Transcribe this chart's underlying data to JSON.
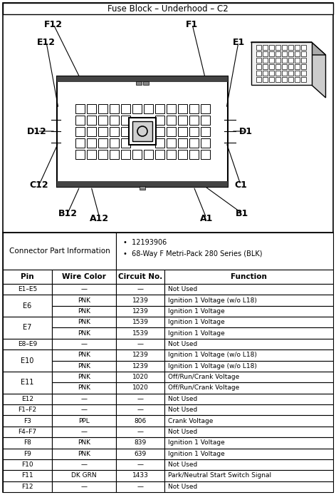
{
  "title": "Fuse Block – Underhood – C2",
  "connector_info_label": "Connector Part Information",
  "connector_info_bullets": [
    "12193906",
    "68-Way F Metri-Pack 280 Series (BLK)"
  ],
  "table_headers": [
    "Pin",
    "Wire Color",
    "Circuit No.",
    "Function"
  ],
  "table_rows": [
    [
      "E1–E5",
      "—",
      "—",
      "Not Used"
    ],
    [
      "E6",
      "PNK",
      "1239",
      "Ignition 1 Voltage (w/o L18)"
    ],
    [
      "E6",
      "PNK",
      "1239",
      "Ignition 1 Voltage"
    ],
    [
      "E7",
      "PNK",
      "1539",
      "Ignition 1 Voltage"
    ],
    [
      "E7",
      "PNK",
      "1539",
      "Ignition 1 Voltage"
    ],
    [
      "E8–E9",
      "—",
      "—",
      "Not Used"
    ],
    [
      "E10",
      "PNK",
      "1239",
      "Ignition 1 Voltage (w/o L18)"
    ],
    [
      "E10",
      "PNK",
      "1239",
      "Ignition 1 Voltage (w/o L18)"
    ],
    [
      "E11",
      "PNK",
      "1020",
      "Off/Run/Crank Voltage"
    ],
    [
      "E11",
      "PNK",
      "1020",
      "Off/Run/Crank Voltage"
    ],
    [
      "E12",
      "—",
      "—",
      "Not Used"
    ],
    [
      "F1–F2",
      "—",
      "—",
      "Not Used"
    ],
    [
      "F3",
      "PPL",
      "806",
      "Crank Voltage"
    ],
    [
      "F4–F7",
      "—",
      "—",
      "Not Used"
    ],
    [
      "F8",
      "PNK",
      "839",
      "Ignition 1 Voltage"
    ],
    [
      "F9",
      "PNK",
      "639",
      "Ignition 1 Voltage"
    ],
    [
      "F10",
      "—",
      "—",
      "Not Used"
    ],
    [
      "F11",
      "DK GRN",
      "1433",
      "Park/Neutral Start Switch Signal"
    ],
    [
      "F12",
      "—",
      "—",
      "Not Used"
    ]
  ],
  "bg_color": "#ffffff"
}
